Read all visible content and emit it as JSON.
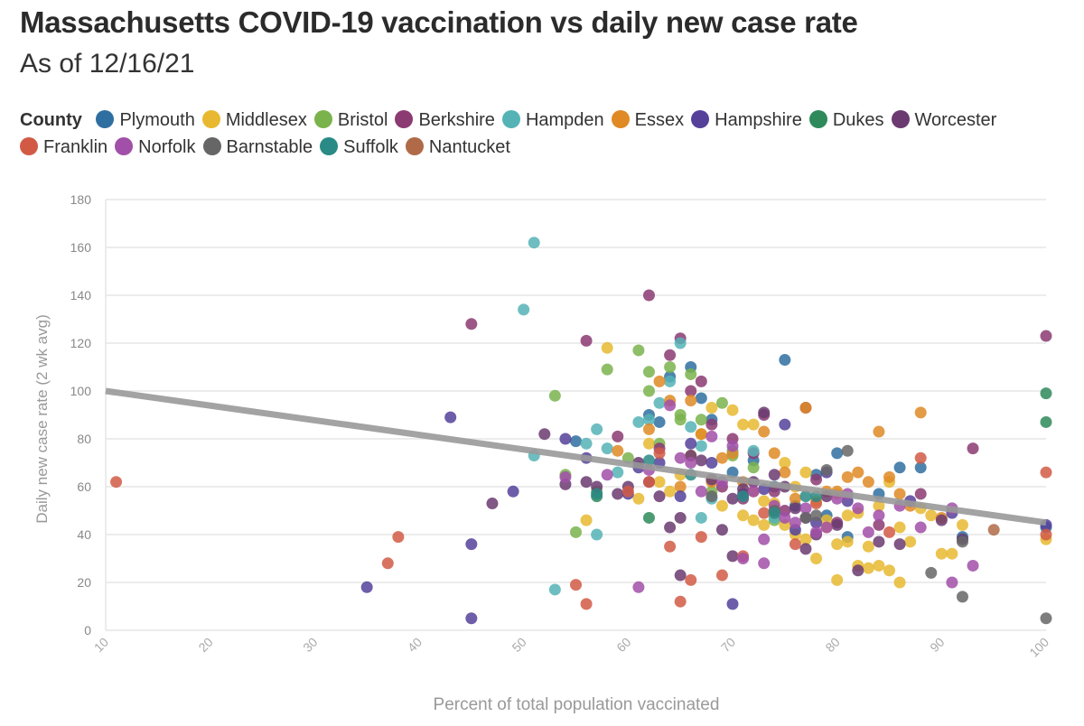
{
  "title": "Massachusetts COVID-19 vaccination vs daily new case rate",
  "subtitle": "As of 12/16/21",
  "legend_title": "County",
  "colors": {
    "Plymouth": "#2f6ea0",
    "Middlesex": "#e8b930",
    "Bristol": "#7ab34c",
    "Berkshire": "#8b3a72",
    "Hampden": "#55b3b6",
    "Essex": "#df8a25",
    "Hampshire": "#55419a",
    "Dukes": "#2e8a5a",
    "Worcester": "#6a3a70",
    "Franklin": "#d25a45",
    "Norfolk": "#a14fa8",
    "Barnstable": "#666666",
    "Suffolk": "#2a8a85",
    "Nantucket": "#b06a48"
  },
  "chart_data": {
    "type": "scatter",
    "xlabel": "Percent of total population vaccinated",
    "ylabel": "Daily new case rate (2 wk avg)",
    "xlim": [
      10,
      100
    ],
    "ylim": [
      0,
      180
    ],
    "xticks": [
      10,
      20,
      30,
      40,
      50,
      60,
      70,
      80,
      90,
      100
    ],
    "yticks": [
      0,
      20,
      40,
      60,
      80,
      100,
      120,
      140,
      160,
      180
    ],
    "grid": "horizontal",
    "legend_position": "top",
    "trendline": {
      "x": [
        10,
        100
      ],
      "y": [
        100,
        45
      ]
    },
    "series": [
      {
        "name": "Plymouth",
        "points": [
          [
            55,
            79
          ],
          [
            62,
            90
          ],
          [
            63,
            87
          ],
          [
            64,
            106
          ],
          [
            66,
            110
          ],
          [
            67,
            97
          ],
          [
            68,
            88
          ],
          [
            70,
            66
          ],
          [
            72,
            71
          ],
          [
            74,
            60
          ],
          [
            75,
            113
          ],
          [
            76,
            52
          ],
          [
            78,
            65
          ],
          [
            79,
            48
          ],
          [
            80,
            74
          ],
          [
            81,
            39
          ],
          [
            84,
            57
          ],
          [
            86,
            68
          ],
          [
            88,
            68
          ],
          [
            92,
            39
          ],
          [
            100,
            43
          ]
        ]
      },
      {
        "name": "Middlesex",
        "points": [
          [
            56,
            46
          ],
          [
            58,
            118
          ],
          [
            61,
            55
          ],
          [
            62,
            78
          ],
          [
            63,
            62
          ],
          [
            64,
            58
          ],
          [
            65,
            65
          ],
          [
            66,
            73
          ],
          [
            67,
            82
          ],
          [
            68,
            93
          ],
          [
            69,
            52
          ],
          [
            70,
            92
          ],
          [
            71,
            86
          ],
          [
            71,
            48
          ],
          [
            72,
            86
          ],
          [
            72,
            46
          ],
          [
            73,
            54
          ],
          [
            73,
            44
          ],
          [
            74,
            53
          ],
          [
            74,
            48
          ],
          [
            75,
            70
          ],
          [
            75,
            44
          ],
          [
            76,
            60
          ],
          [
            76,
            40
          ],
          [
            77,
            38
          ],
          [
            77,
            66
          ],
          [
            78,
            30
          ],
          [
            78,
            54
          ],
          [
            79,
            46
          ],
          [
            79,
            43
          ],
          [
            80,
            57
          ],
          [
            80,
            36
          ],
          [
            80,
            21
          ],
          [
            81,
            48
          ],
          [
            81,
            37
          ],
          [
            82,
            27
          ],
          [
            82,
            49
          ],
          [
            83,
            35
          ],
          [
            83,
            26
          ],
          [
            84,
            52
          ],
          [
            84,
            27
          ],
          [
            85,
            25
          ],
          [
            85,
            62
          ],
          [
            86,
            20
          ],
          [
            86,
            43
          ],
          [
            87,
            37
          ],
          [
            88,
            51
          ],
          [
            89,
            48
          ],
          [
            90,
            32
          ],
          [
            91,
            32
          ],
          [
            92,
            44
          ],
          [
            100,
            38
          ]
        ]
      },
      {
        "name": "Bristol",
        "points": [
          [
            53,
            98
          ],
          [
            54,
            65
          ],
          [
            55,
            41
          ],
          [
            57,
            58
          ],
          [
            58,
            109
          ],
          [
            60,
            72
          ],
          [
            61,
            117
          ],
          [
            62,
            108
          ],
          [
            62,
            100
          ],
          [
            63,
            78
          ],
          [
            64,
            110
          ],
          [
            65,
            90
          ],
          [
            65,
            88
          ],
          [
            66,
            107
          ],
          [
            67,
            88
          ],
          [
            68,
            58
          ],
          [
            69,
            95
          ],
          [
            70,
            73
          ],
          [
            72,
            68
          ],
          [
            74,
            46
          ]
        ]
      },
      {
        "name": "Berkshire",
        "points": [
          [
            45,
            128
          ],
          [
            56,
            121
          ],
          [
            59,
            81
          ],
          [
            62,
            140
          ],
          [
            63,
            76
          ],
          [
            64,
            115
          ],
          [
            65,
            122
          ],
          [
            66,
            100
          ],
          [
            67,
            104
          ],
          [
            68,
            86
          ],
          [
            69,
            60
          ],
          [
            70,
            80
          ],
          [
            71,
            55
          ],
          [
            72,
            74
          ],
          [
            73,
            90
          ],
          [
            74,
            58
          ],
          [
            75,
            50
          ],
          [
            77,
            93
          ],
          [
            78,
            63
          ],
          [
            80,
            45
          ],
          [
            84,
            44
          ],
          [
            88,
            57
          ],
          [
            93,
            76
          ],
          [
            100,
            123
          ]
        ]
      },
      {
        "name": "Hampden",
        "points": [
          [
            50,
            134
          ],
          [
            51,
            162
          ],
          [
            51,
            73
          ],
          [
            53,
            17
          ],
          [
            56,
            78
          ],
          [
            57,
            84
          ],
          [
            57,
            40
          ],
          [
            58,
            76
          ],
          [
            59,
            66
          ],
          [
            61,
            87
          ],
          [
            62,
            88
          ],
          [
            63,
            95
          ],
          [
            64,
            104
          ],
          [
            65,
            120
          ],
          [
            66,
            85
          ],
          [
            67,
            77
          ],
          [
            67,
            47
          ],
          [
            68,
            55
          ],
          [
            70,
            75
          ],
          [
            72,
            75
          ],
          [
            74,
            47
          ]
        ]
      },
      {
        "name": "Essex",
        "points": [
          [
            59,
            75
          ],
          [
            62,
            84
          ],
          [
            63,
            104
          ],
          [
            64,
            96
          ],
          [
            65,
            60
          ],
          [
            66,
            96
          ],
          [
            67,
            82
          ],
          [
            68,
            62
          ],
          [
            69,
            72
          ],
          [
            70,
            74
          ],
          [
            71,
            62
          ],
          [
            72,
            58
          ],
          [
            73,
            83
          ],
          [
            74,
            74
          ],
          [
            75,
            66
          ],
          [
            76,
            55
          ],
          [
            77,
            93
          ],
          [
            79,
            58
          ],
          [
            80,
            58
          ],
          [
            81,
            64
          ],
          [
            82,
            66
          ],
          [
            83,
            62
          ],
          [
            84,
            83
          ],
          [
            85,
            64
          ],
          [
            86,
            57
          ],
          [
            87,
            52
          ],
          [
            88,
            91
          ],
          [
            90,
            47
          ]
        ]
      },
      {
        "name": "Hampshire",
        "points": [
          [
            35,
            18
          ],
          [
            43,
            89
          ],
          [
            45,
            36
          ],
          [
            45,
            5
          ],
          [
            49,
            58
          ],
          [
            54,
            80
          ],
          [
            56,
            72
          ],
          [
            60,
            57
          ],
          [
            61,
            68
          ],
          [
            63,
            70
          ],
          [
            65,
            56
          ],
          [
            66,
            78
          ],
          [
            68,
            70
          ],
          [
            70,
            11
          ],
          [
            71,
            57
          ],
          [
            73,
            59
          ],
          [
            75,
            86
          ],
          [
            76,
            42
          ],
          [
            78,
            45
          ],
          [
            79,
            66
          ],
          [
            81,
            54
          ],
          [
            87,
            54
          ],
          [
            91,
            49
          ],
          [
            100,
            44
          ]
        ]
      },
      {
        "name": "Dukes",
        "points": [
          [
            57,
            56
          ],
          [
            62,
            47
          ],
          [
            100,
            99
          ],
          [
            100,
            87
          ]
        ]
      },
      {
        "name": "Worcester",
        "points": [
          [
            47,
            53
          ],
          [
            52,
            82
          ],
          [
            54,
            61
          ],
          [
            56,
            62
          ],
          [
            57,
            60
          ],
          [
            59,
            57
          ],
          [
            60,
            60
          ],
          [
            61,
            70
          ],
          [
            62,
            62
          ],
          [
            63,
            56
          ],
          [
            64,
            43
          ],
          [
            65,
            47
          ],
          [
            65,
            23
          ],
          [
            66,
            73
          ],
          [
            67,
            71
          ],
          [
            68,
            63
          ],
          [
            69,
            42
          ],
          [
            70,
            55
          ],
          [
            70,
            31
          ],
          [
            71,
            59
          ],
          [
            72,
            62
          ],
          [
            73,
            91
          ],
          [
            74,
            65
          ],
          [
            75,
            60
          ],
          [
            76,
            51
          ],
          [
            77,
            47
          ],
          [
            77,
            34
          ],
          [
            78,
            40
          ],
          [
            79,
            56
          ],
          [
            80,
            44
          ],
          [
            82,
            25
          ],
          [
            84,
            37
          ],
          [
            86,
            36
          ],
          [
            90,
            46
          ],
          [
            92,
            38
          ]
        ]
      },
      {
        "name": "Franklin",
        "points": [
          [
            11,
            62
          ],
          [
            37,
            28
          ],
          [
            38,
            39
          ],
          [
            55,
            19
          ],
          [
            56,
            11
          ],
          [
            60,
            58
          ],
          [
            62,
            62
          ],
          [
            63,
            74
          ],
          [
            64,
            35
          ],
          [
            65,
            12
          ],
          [
            66,
            21
          ],
          [
            67,
            39
          ],
          [
            69,
            23
          ],
          [
            71,
            31
          ],
          [
            73,
            49
          ],
          [
            76,
            36
          ],
          [
            78,
            53
          ],
          [
            85,
            41
          ],
          [
            88,
            72
          ],
          [
            100,
            66
          ],
          [
            100,
            40
          ]
        ]
      },
      {
        "name": "Norfolk",
        "points": [
          [
            54,
            64
          ],
          [
            58,
            65
          ],
          [
            61,
            18
          ],
          [
            62,
            67
          ],
          [
            64,
            94
          ],
          [
            65,
            72
          ],
          [
            66,
            70
          ],
          [
            67,
            58
          ],
          [
            68,
            81
          ],
          [
            69,
            62
          ],
          [
            70,
            77
          ],
          [
            71,
            30
          ],
          [
            72,
            58
          ],
          [
            73,
            38
          ],
          [
            73,
            28
          ],
          [
            74,
            52
          ],
          [
            75,
            47
          ],
          [
            76,
            45
          ],
          [
            77,
            51
          ],
          [
            78,
            41
          ],
          [
            79,
            43
          ],
          [
            80,
            55
          ],
          [
            81,
            57
          ],
          [
            82,
            51
          ],
          [
            83,
            41
          ],
          [
            84,
            48
          ],
          [
            86,
            52
          ],
          [
            88,
            43
          ],
          [
            91,
            51
          ],
          [
            91,
            20
          ],
          [
            93,
            27
          ]
        ]
      },
      {
        "name": "Barnstable",
        "points": [
          [
            68,
            56
          ],
          [
            74,
            50
          ],
          [
            77,
            47
          ],
          [
            78,
            48
          ],
          [
            79,
            67
          ],
          [
            81,
            75
          ],
          [
            89,
            24
          ],
          [
            92,
            37
          ],
          [
            92,
            14
          ],
          [
            100,
            5
          ]
        ]
      },
      {
        "name": "Suffolk",
        "points": [
          [
            57,
            57
          ],
          [
            62,
            71
          ],
          [
            66,
            65
          ],
          [
            71,
            56
          ],
          [
            74,
            49
          ],
          [
            77,
            56
          ],
          [
            78,
            56
          ]
        ]
      },
      {
        "name": "Nantucket",
        "points": [
          [
            95,
            42
          ]
        ]
      }
    ]
  }
}
